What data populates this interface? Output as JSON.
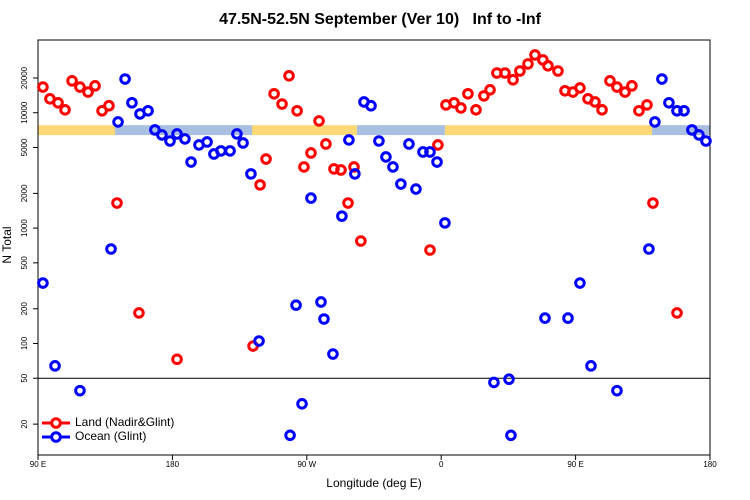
{
  "chart_data": {
    "type": "scatter",
    "title": "47.5N-52.5N September (Ver 10)   Inf to -Inf",
    "x_label": "Longitude (deg E)",
    "y_label": "N Total",
    "log_y": true,
    "xlim": [
      90,
      540
    ],
    "ylim": [
      10.8,
      42700
    ],
    "xticks": [
      {
        "value": 90,
        "label": "90 E"
      },
      180,
      {
        "value": 270,
        "label": "90 W"
      },
      {
        "value": 360,
        "label": "0"
      },
      {
        "value": 450,
        "label": "90 E"
      },
      {
        "value": 540,
        "label": "180"
      }
    ],
    "yticks": [
      20,
      50,
      100,
      200,
      500,
      1000,
      2000,
      5000,
      10000,
      20000
    ],
    "hline": 50,
    "legend": "bottom-left",
    "band": {
      "y": [
        6400,
        7800
      ],
      "segments": [
        {
          "start": 90,
          "end": 141.6,
          "color": "#fcd975"
        },
        {
          "start": 141.6,
          "end": 233.3,
          "color": "#a9bfe2"
        },
        {
          "start": 233.3,
          "end": 303.6,
          "color": "#fcd975"
        },
        {
          "start": 303.6,
          "end": 362.5,
          "color": "#a9bfe2"
        },
        {
          "start": 362.5,
          "end": 501.2,
          "color": "#fcd975"
        },
        {
          "start": 501.2,
          "end": 540,
          "color": "#a9bfe2"
        }
      ]
    },
    "series": [
      {
        "name": "Land (Nadir&Glint)",
        "color": "#ff0000",
        "x": [
          93.3,
          98.0,
          103.4,
          108.1,
          112.8,
          118.1,
          123.5,
          128.2,
          132.9,
          137.5,
          142.9,
          157.6,
          183.1,
          234.0,
          238.7,
          242.7,
          248.1,
          253.4,
          258.1,
          263.5,
          268.1,
          272.8,
          278.2,
          282.8,
          288.2,
          292.9,
          297.6,
          301.6,
          306.2,
          352.5,
          357.8,
          363.2,
          368.6,
          373.2,
          377.9,
          383.3,
          388.6,
          392.7,
          397.3,
          402.7,
          408.1,
          412.7,
          418.1,
          422.8,
          428.1,
          431.5,
          438.2,
          442.9,
          448.2,
          452.9,
          458.3,
          463.0,
          467.7,
          473.0,
          477.7,
          483.1,
          487.7,
          492.4,
          497.8,
          501.8,
          517.9
        ],
        "values": [
          16700,
          13200,
          12200,
          10600,
          18900,
          16700,
          15100,
          17100,
          10400,
          11500,
          1650,
          184,
          73,
          95,
          2370,
          3970,
          14600,
          11900,
          20900,
          10400,
          3390,
          4480,
          8490,
          5360,
          3260,
          3190,
          1650,
          3390,
          773,
          646,
          5260,
          11700,
          12200,
          11000,
          14600,
          10600,
          14000,
          15800,
          22100,
          22100,
          19300,
          23000,
          26500,
          31700,
          28700,
          25500,
          23000,
          15500,
          15100,
          16400,
          13200,
          12400,
          10600,
          18900,
          16700,
          15100,
          17100,
          10400,
          11700,
          1650,
          184
        ]
      },
      {
        "name": "Ocean (Glint)",
        "color": "#0000ff",
        "x": [
          93.3,
          101.4,
          118.1,
          138.9,
          143.6,
          148.3,
          152.9,
          158.3,
          163.7,
          168.3,
          173.0,
          178.4,
          183.1,
          188.4,
          192.5,
          197.8,
          203.2,
          207.8,
          212.5,
          218.6,
          223.2,
          227.3,
          232.6,
          238.0,
          258.8,
          262.8,
          266.8,
          272.8,
          279.5,
          281.5,
          287.5,
          293.5,
          298.2,
          302.2,
          308.3,
          313.0,
          318.3,
          323.0,
          327.7,
          333.0,
          338.4,
          343.1,
          347.8,
          352.5,
          357.2,
          362.5,
          395.3,
          405.4,
          406.7,
          429.5,
          444.9,
          452.9,
          460.3,
          477.7,
          499.1,
          503.1,
          507.8,
          512.5,
          517.9,
          522.6,
          527.9,
          532.6,
          537.3
        ],
        "values": [
          334,
          64,
          39,
          659,
          8320,
          19600,
          12200,
          9770,
          10400,
          7100,
          6420,
          5690,
          6550,
          5930,
          3740,
          5260,
          5580,
          4390,
          4670,
          4670,
          6550,
          5470,
          2950,
          105,
          16,
          215,
          30,
          1820,
          229,
          163,
          81,
          1270,
          5810,
          2950,
          12400,
          11500,
          5690,
          4140,
          3390,
          2410,
          5360,
          2180,
          4570,
          4570,
          3740,
          1110,
          46,
          49,
          16,
          166,
          166,
          334,
          64,
          39,
          659,
          8320,
          19600,
          12200,
          10400,
          10400,
          7100,
          6420,
          5690
        ]
      }
    ]
  }
}
